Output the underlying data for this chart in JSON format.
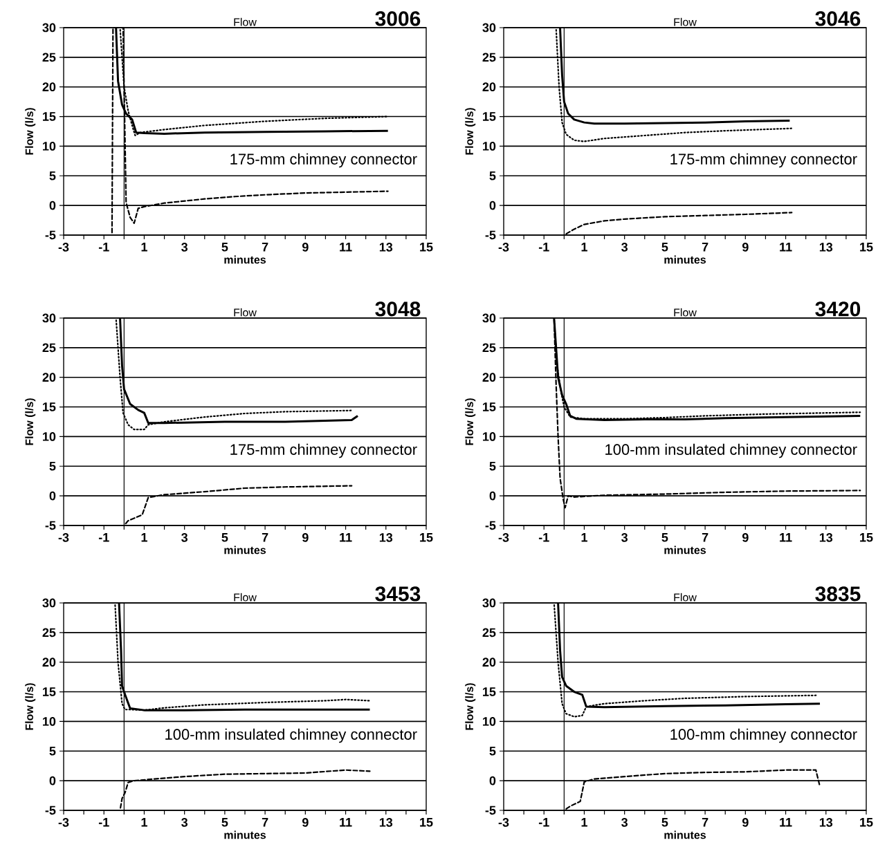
{
  "chart_data": [
    {
      "type": "line",
      "title": "Flow",
      "subtitle": "3006",
      "xlabel": "minutes",
      "ylabel": "Flow (l/s)",
      "annotations": [
        "175-mm chimney connector"
      ],
      "xlim": [
        -3,
        15
      ],
      "ylim": [
        -5,
        30
      ],
      "xticks": [
        -3,
        {
          "value": -2,
          "label": null
        },
        -1,
        {
          "value": 0,
          "label": null
        },
        1,
        {
          "value": 2,
          "label": null
        },
        3,
        {
          "value": 4,
          "label": null
        },
        5,
        {
          "value": 6,
          "label": null
        },
        7,
        {
          "value": 8,
          "label": null
        },
        9,
        {
          "value": 10,
          "label": null
        },
        11,
        {
          "value": 12,
          "label": null
        },
        13,
        {
          "value": 14,
          "label": null
        },
        15
      ],
      "yticks": [
        -5,
        0,
        5,
        10,
        15,
        20,
        25,
        30
      ],
      "grid": "y",
      "ref_lines": [
        {
          "axis": "x",
          "value": 0
        }
      ],
      "series": [
        {
          "color": "#000000",
          "line_style": "solid",
          "x": [
            -0.4,
            -0.3,
            -0.1,
            0.1,
            0.4,
            0.6,
            1,
            2,
            4,
            7,
            10,
            13.1
          ],
          "values": [
            30,
            21,
            17,
            15.5,
            14.5,
            12.3,
            12.2,
            12.1,
            12.3,
            12.4,
            12.5,
            12.6
          ]
        },
        {
          "color": "#000000",
          "line_style": "dotted",
          "x": [
            -0.2,
            0,
            0.2,
            0.4,
            0.55,
            0.8,
            2,
            4,
            7,
            10,
            13.1
          ],
          "values": [
            30,
            20,
            16,
            13.5,
            11.8,
            12.3,
            12.8,
            13.5,
            14.2,
            14.7,
            15.0
          ]
        },
        {
          "color": "#000000",
          "line_style": "dashed",
          "x": [
            -0.6,
            -0.55,
            -0.05,
            0.1,
            0.3,
            0.5,
            0.7,
            1,
            2,
            4,
            5.5,
            7,
            9,
            13.1
          ],
          "values": [
            -5,
            30,
            30,
            0.5,
            -2,
            -3,
            -0.5,
            -0.2,
            0.4,
            1.1,
            1.5,
            1.8,
            2.1,
            2.4
          ]
        }
      ]
    },
    {
      "type": "line",
      "title": "Flow",
      "subtitle": "3046",
      "xlabel": "minutes",
      "ylabel": "Flow (l/s)",
      "annotations": [
        "175-mm chimney connector"
      ],
      "xlim": [
        -3,
        15
      ],
      "ylim": [
        -5,
        30
      ],
      "xticks": [
        -3,
        {
          "value": -2,
          "label": null
        },
        -1,
        {
          "value": 0,
          "label": null
        },
        1,
        {
          "value": 2,
          "label": null
        },
        3,
        {
          "value": 4,
          "label": null
        },
        5,
        {
          "value": 6,
          "label": null
        },
        7,
        {
          "value": 8,
          "label": null
        },
        9,
        {
          "value": 10,
          "label": null
        },
        11,
        {
          "value": 12,
          "label": null
        },
        13,
        {
          "value": 14,
          "label": null
        },
        15
      ],
      "yticks": [
        -5,
        0,
        5,
        10,
        15,
        20,
        25,
        30
      ],
      "grid": "y",
      "ref_lines": [
        {
          "axis": "x",
          "value": 0
        }
      ],
      "series": [
        {
          "color": "#000000",
          "line_style": "solid",
          "x": [
            -0.2,
            -0.1,
            0,
            0.2,
            0.5,
            1,
            1.5,
            3,
            5,
            7,
            9,
            11.2
          ],
          "values": [
            30,
            22,
            17.5,
            15.5,
            14.5,
            14,
            13.8,
            13.8,
            13.9,
            14.0,
            14.2,
            14.3
          ]
        },
        {
          "color": "#000000",
          "line_style": "dotted",
          "x": [
            -0.4,
            -0.25,
            -0.1,
            0.1,
            0.5,
            1,
            2,
            4,
            6,
            8,
            11.3
          ],
          "values": [
            30,
            20,
            14,
            12,
            11,
            10.8,
            11.3,
            11.8,
            12.3,
            12.6,
            13.0
          ]
        },
        {
          "color": "#000000",
          "line_style": "dashed",
          "x": [
            0,
            0.5,
            1,
            2,
            3,
            5,
            7,
            9,
            11.3
          ],
          "values": [
            -5,
            -4,
            -3.2,
            -2.6,
            -2.3,
            -1.9,
            -1.7,
            -1.5,
            -1.2
          ]
        }
      ]
    },
    {
      "type": "line",
      "title": "Flow",
      "subtitle": "3048",
      "xlabel": "minutes",
      "ylabel": "Flow (l/s)",
      "annotations": [
        "175-mm chimney connector"
      ],
      "xlim": [
        -3,
        15
      ],
      "ylim": [
        -5,
        30
      ],
      "xticks": [
        -3,
        {
          "value": -2,
          "label": null
        },
        -1,
        {
          "value": 0,
          "label": null
        },
        1,
        {
          "value": 2,
          "label": null
        },
        3,
        {
          "value": 4,
          "label": null
        },
        5,
        {
          "value": 6,
          "label": null
        },
        7,
        {
          "value": 8,
          "label": null
        },
        9,
        {
          "value": 10,
          "label": null
        },
        11,
        {
          "value": 12,
          "label": null
        },
        13,
        {
          "value": 14,
          "label": null
        },
        15
      ],
      "yticks": [
        -5,
        0,
        5,
        10,
        15,
        20,
        25,
        30
      ],
      "grid": "y",
      "ref_lines": [
        {
          "axis": "x",
          "value": 0
        }
      ],
      "series": [
        {
          "color": "#000000",
          "line_style": "solid",
          "x": [
            -0.2,
            -0.1,
            0,
            0.3,
            0.7,
            1,
            1.2,
            2,
            5,
            8,
            11.3,
            11.6
          ],
          "values": [
            30,
            22,
            18,
            15.5,
            14.5,
            14,
            12.3,
            12.3,
            12.5,
            12.5,
            12.8,
            13.5
          ]
        },
        {
          "color": "#000000",
          "line_style": "dotted",
          "x": [
            -0.4,
            -0.2,
            -0.05,
            0.2,
            0.5,
            1,
            1.2,
            2,
            4,
            6,
            8,
            11.3
          ],
          "values": [
            30,
            20,
            14,
            12,
            11.2,
            11.2,
            12,
            12.5,
            13.3,
            13.9,
            14.2,
            14.4
          ]
        },
        {
          "color": "#000000",
          "line_style": "dashed",
          "x": [
            0,
            0.2,
            0.9,
            1.2,
            2,
            4,
            6,
            8,
            11.3
          ],
          "values": [
            -5,
            -4.2,
            -3.2,
            -0.3,
            0.2,
            0.7,
            1.3,
            1.5,
            1.7
          ]
        }
      ]
    },
    {
      "type": "line",
      "title": "Flow",
      "subtitle": "3420",
      "xlabel": "minutes",
      "ylabel": "Flow (l/s)",
      "annotations": [
        "100-mm insulated chimney connector"
      ],
      "xlim": [
        -3,
        15
      ],
      "ylim": [
        -5,
        30
      ],
      "xticks": [
        -3,
        {
          "value": -2,
          "label": null
        },
        -1,
        {
          "value": 0,
          "label": null
        },
        1,
        {
          "value": 2,
          "label": null
        },
        3,
        {
          "value": 4,
          "label": null
        },
        5,
        {
          "value": 6,
          "label": null
        },
        7,
        {
          "value": 8,
          "label": null
        },
        9,
        {
          "value": 10,
          "label": null
        },
        11,
        {
          "value": 12,
          "label": null
        },
        13,
        {
          "value": 14,
          "label": null
        },
        15
      ],
      "yticks": [
        -5,
        0,
        5,
        10,
        15,
        20,
        25,
        30
      ],
      "grid": "y",
      "ref_lines": [
        {
          "axis": "x",
          "value": 0
        }
      ],
      "series": [
        {
          "color": "#000000",
          "line_style": "solid",
          "x": [
            -0.5,
            -0.4,
            -0.3,
            -0.1,
            0.1,
            0.3,
            0.6,
            2,
            4,
            6,
            8,
            11,
            14.7
          ],
          "values": [
            30,
            25,
            20,
            17,
            15.5,
            13.5,
            13,
            12.8,
            12.9,
            12.9,
            13.1,
            13.3,
            13.5
          ]
        },
        {
          "color": "#000000",
          "line_style": "dotted",
          "x": [
            -0.5,
            -0.35,
            -0.15,
            0,
            0.3,
            1,
            3,
            5,
            7,
            10,
            14.7
          ],
          "values": [
            30,
            22,
            17.5,
            15,
            13.3,
            13,
            13,
            13.2,
            13.5,
            13.8,
            14.1
          ]
        },
        {
          "color": "#000000",
          "line_style": "dashed",
          "x": [
            -0.5,
            -0.4,
            -0.3,
            -0.2,
            -0.05,
            0.05,
            0.2,
            0.5,
            2,
            5,
            8,
            11,
            14.7
          ],
          "values": [
            30,
            19,
            10,
            3,
            -0.5,
            -2,
            0,
            -0.2,
            0.1,
            0.3,
            0.6,
            0.8,
            0.9
          ]
        }
      ]
    },
    {
      "type": "line",
      "title": "Flow",
      "subtitle": "3453",
      "xlabel": "minutes",
      "ylabel": "Flow (l/s)",
      "annotations": [
        "100-mm insulated chimney connector"
      ],
      "xlim": [
        -3,
        15
      ],
      "ylim": [
        -5,
        30
      ],
      "xticks": [
        -3,
        {
          "value": -2,
          "label": null
        },
        -1,
        {
          "value": 0,
          "label": null
        },
        1,
        {
          "value": 2,
          "label": null
        },
        3,
        {
          "value": 4,
          "label": null
        },
        5,
        {
          "value": 6,
          "label": null
        },
        7,
        {
          "value": 8,
          "label": null
        },
        9,
        {
          "value": 10,
          "label": null
        },
        11,
        {
          "value": 12,
          "label": null
        },
        13,
        {
          "value": 14,
          "label": null
        },
        15
      ],
      "yticks": [
        -5,
        0,
        5,
        10,
        15,
        20,
        25,
        30
      ],
      "grid": "y",
      "ref_lines": [
        {
          "axis": "x",
          "value": 0
        }
      ],
      "series": [
        {
          "color": "#000000",
          "line_style": "solid",
          "x": [
            -0.25,
            -0.15,
            -0.1,
            0.05,
            0.3,
            1,
            3,
            6,
            9,
            12.2
          ],
          "values": [
            30,
            22,
            16,
            14.5,
            12.2,
            11.9,
            11.9,
            12,
            12,
            12
          ]
        },
        {
          "color": "#000000",
          "line_style": "dotted",
          "x": [
            -0.45,
            -0.3,
            -0.1,
            0.05,
            0.3,
            1,
            2,
            4,
            7,
            10,
            11,
            12.2
          ],
          "values": [
            30,
            20,
            13,
            12,
            12,
            11.9,
            12.3,
            12.8,
            13.2,
            13.5,
            13.7,
            13.5
          ]
        },
        {
          "color": "#000000",
          "line_style": "dashed",
          "x": [
            -0.2,
            -0.1,
            0.05,
            0.2,
            0.5,
            1.5,
            3,
            5,
            7,
            9,
            11,
            12.2
          ],
          "values": [
            -5,
            -3,
            -2,
            -0.3,
            0,
            0.3,
            0.7,
            1.1,
            1.2,
            1.3,
            1.8,
            1.6
          ]
        }
      ]
    },
    {
      "type": "line",
      "title": "Flow",
      "subtitle": "3835",
      "xlabel": "minutes",
      "ylabel": "Flow (l/s)",
      "annotations": [
        "100-mm chimney connector"
      ],
      "xlim": [
        -3,
        15
      ],
      "ylim": [
        -5,
        30
      ],
      "xticks": [
        -3,
        {
          "value": -2,
          "label": null
        },
        -1,
        {
          "value": 0,
          "label": null
        },
        1,
        {
          "value": 2,
          "label": null
        },
        3,
        {
          "value": 4,
          "label": null
        },
        5,
        {
          "value": 6,
          "label": null
        },
        7,
        {
          "value": 8,
          "label": null
        },
        9,
        {
          "value": 10,
          "label": null
        },
        11,
        {
          "value": 12,
          "label": null
        },
        13,
        {
          "value": 14,
          "label": null
        },
        15
      ],
      "yticks": [
        -5,
        0,
        5,
        10,
        15,
        20,
        25,
        30
      ],
      "grid": "y",
      "ref_lines": [
        {
          "axis": "x",
          "value": 0
        }
      ],
      "series": [
        {
          "color": "#000000",
          "line_style": "solid",
          "x": [
            -0.3,
            -0.2,
            -0.1,
            0.1,
            0.5,
            0.9,
            1.1,
            2,
            5,
            8,
            11,
            12.7
          ],
          "values": [
            30,
            22,
            17.5,
            16,
            15,
            14.5,
            12.5,
            12.4,
            12.6,
            12.7,
            12.9,
            13
          ]
        },
        {
          "color": "#000000",
          "line_style": "dotted",
          "x": [
            -0.5,
            -0.3,
            -0.1,
            0.1,
            0.5,
            0.9,
            1.1,
            2,
            4,
            6,
            9,
            12.5
          ],
          "values": [
            30,
            20,
            13,
            11.3,
            10.8,
            11,
            12.5,
            13,
            13.5,
            13.9,
            14.2,
            14.4
          ]
        },
        {
          "color": "#000000",
          "line_style": "dashed",
          "x": [
            0,
            0.3,
            0.8,
            1.0,
            1.5,
            3,
            5,
            7,
            9,
            11,
            12.5,
            12.7
          ],
          "values": [
            -5,
            -4.3,
            -3.5,
            -0.2,
            0.3,
            0.7,
            1.2,
            1.4,
            1.5,
            1.8,
            1.8,
            -1.0
          ]
        }
      ]
    }
  ]
}
